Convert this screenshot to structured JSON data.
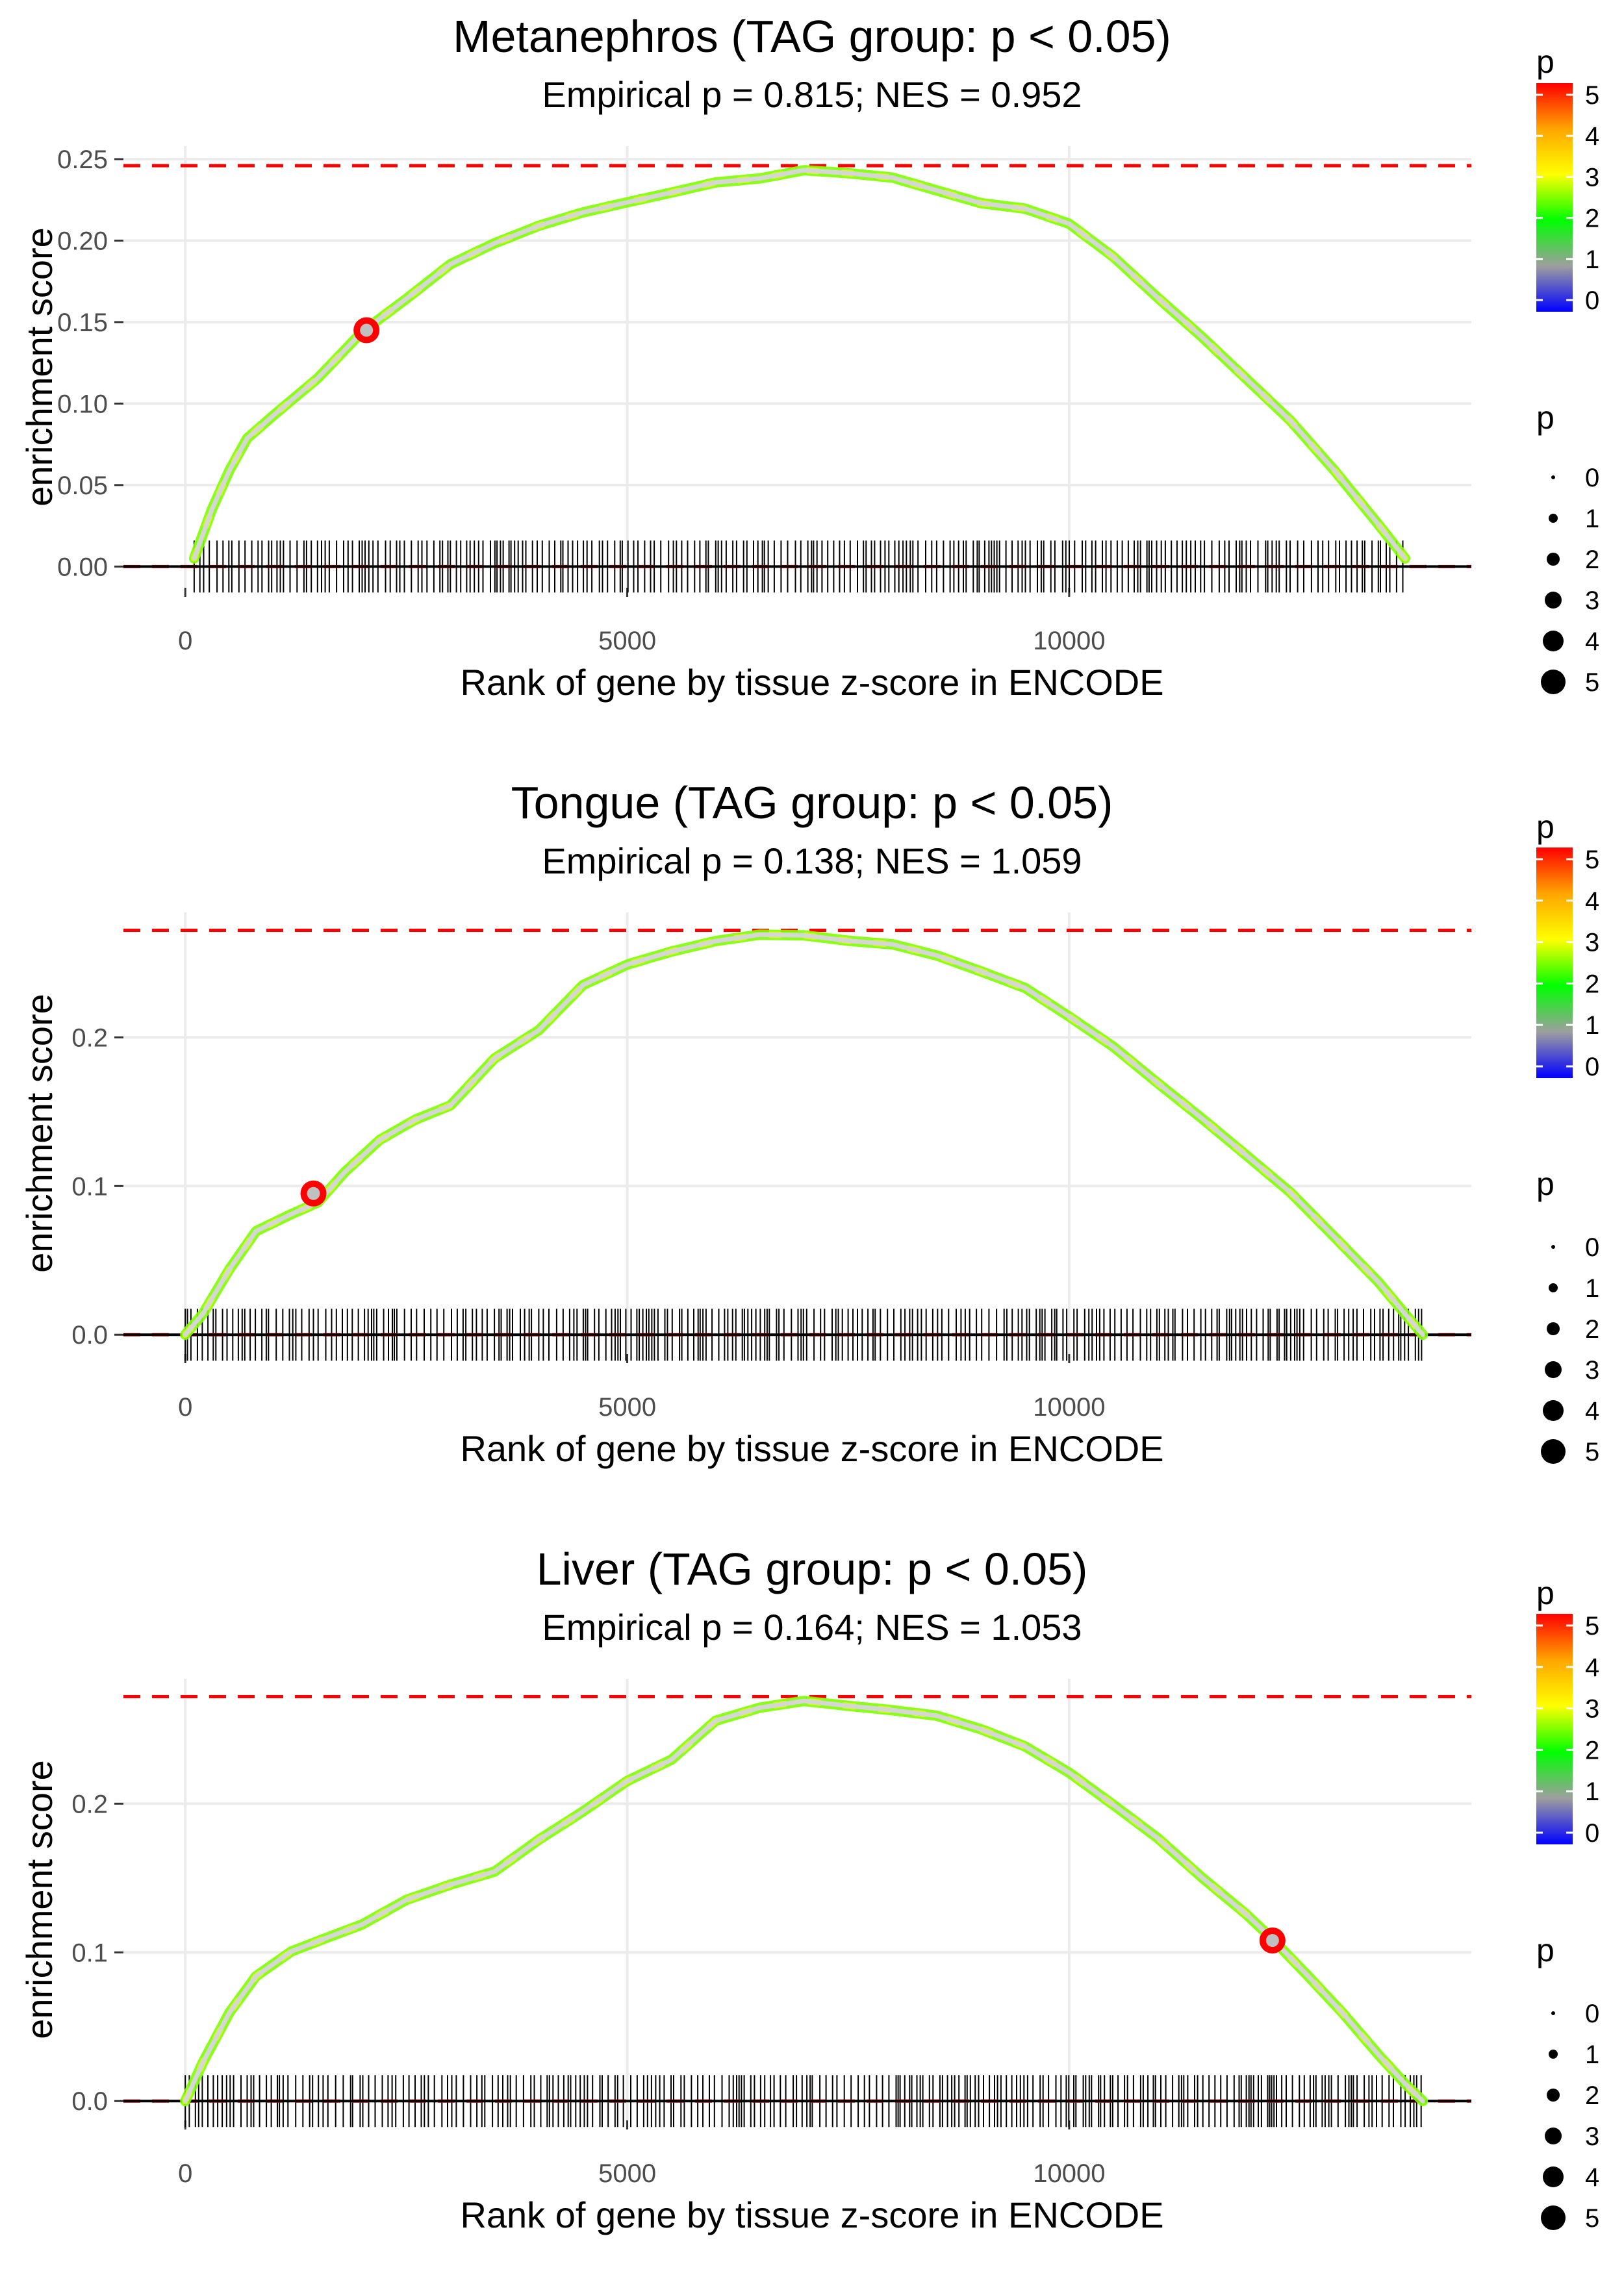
{
  "colors": {
    "null_line": "#ff0000",
    "enrichment_line": "#d6d6d6",
    "gene_marks": "#000000",
    "grid": "#ebebeb",
    "highlight": "#ff0000",
    "scale": [
      "#0000ff",
      "#9e9e9e",
      "#00ff00",
      "#ffff00",
      "#ffa500",
      "#ff0000"
    ]
  },
  "chart_data": [
    {
      "type": "line",
      "title": "Metanephros (TAG group: p < 0.05)",
      "subtitle": "Empirical p = 0.815; NES = 0.952",
      "xlabel": "Rank of gene by tissue z-score in ENCODE",
      "ylabel": "enrichment score",
      "xlim": [
        -700,
        14550
      ],
      "ylim": [
        -0.013,
        0.258
      ],
      "x_ticks": [
        0,
        5000,
        10000
      ],
      "x_tick_labels": [
        "0",
        "5000",
        "10000"
      ],
      "y_ticks": [
        0,
        0.05,
        0.1,
        0.15,
        0.2,
        0.25
      ],
      "y_tick_labels": [
        "0.00",
        "0.05",
        "0.10",
        "0.15",
        "0.20",
        "0.25"
      ],
      "max_es": 0.246,
      "x": [
        100,
        300,
        500,
        700,
        1000,
        1500,
        2000,
        2500,
        3000,
        3500,
        4000,
        4500,
        5000,
        5500,
        6000,
        6500,
        7000,
        7500,
        8000,
        8500,
        9000,
        9500,
        10000,
        10500,
        11000,
        11500,
        12000,
        12500,
        13000,
        13500,
        13800
      ],
      "y": [
        0.005,
        0.035,
        0.06,
        0.078,
        0.092,
        0.115,
        0.145,
        0.165,
        0.185,
        0.198,
        0.21,
        0.218,
        0.224,
        0.23,
        0.235,
        0.239,
        0.244,
        0.242,
        0.238,
        0.23,
        0.222,
        0.219,
        0.21,
        0.19,
        0.165,
        0.14,
        0.115,
        0.09,
        0.06,
        0.025,
        0.005
      ],
      "highlight": {
        "x": 2050,
        "y": 0.145
      },
      "legend_title": "p",
      "legend_color_labels": [
        "5",
        "4",
        "3",
        "2",
        "1",
        "0"
      ],
      "legend_size_labels": [
        "0",
        "1",
        "2",
        "3",
        "4",
        "5"
      ]
    },
    {
      "type": "line",
      "title": "Tongue (TAG group: p < 0.05)",
      "subtitle": "Empirical p = 0.138; NES = 1.059",
      "xlabel": "Rank of gene by tissue z-score in ENCODE",
      "ylabel": "enrichment score",
      "xlim": [
        -700,
        14550
      ],
      "ylim": [
        -0.013,
        0.284
      ],
      "x_ticks": [
        0,
        5000,
        10000
      ],
      "x_tick_labels": [
        "0",
        "5000",
        "10000"
      ],
      "y_ticks": [
        0,
        0.1,
        0.2
      ],
      "y_tick_labels": [
        "0.0",
        "0.1",
        "0.2"
      ],
      "max_es": 0.272,
      "x": [
        0,
        200,
        500,
        800,
        1200,
        1500,
        1800,
        2200,
        2600,
        3000,
        3500,
        4000,
        4500,
        5000,
        5500,
        6000,
        6500,
        7000,
        7500,
        8000,
        8500,
        9000,
        9500,
        10000,
        10500,
        11000,
        11500,
        12000,
        12500,
        13000,
        13500,
        13800,
        14000
      ],
      "y": [
        0.0,
        0.015,
        0.045,
        0.07,
        0.082,
        0.088,
        0.11,
        0.13,
        0.145,
        0.155,
        0.185,
        0.205,
        0.235,
        0.25,
        0.258,
        0.264,
        0.27,
        0.268,
        0.266,
        0.263,
        0.256,
        0.245,
        0.232,
        0.215,
        0.195,
        0.17,
        0.145,
        0.12,
        0.095,
        0.065,
        0.035,
        0.015,
        0.0
      ],
      "highlight": {
        "x": 1450,
        "y": 0.095
      },
      "legend_title": "p",
      "legend_color_labels": [
        "5",
        "4",
        "3",
        "2",
        "1",
        "0"
      ],
      "legend_size_labels": [
        "0",
        "1",
        "2",
        "3",
        "4",
        "5"
      ]
    },
    {
      "type": "line",
      "title": "Liver (TAG group: p < 0.05)",
      "subtitle": "Empirical p = 0.164; NES = 1.053",
      "xlabel": "Rank of gene by tissue z-score in ENCODE",
      "ylabel": "enrichment score",
      "xlim": [
        -700,
        14550
      ],
      "ylim": [
        -0.013,
        0.284
      ],
      "x_ticks": [
        0,
        5000,
        10000
      ],
      "x_tick_labels": [
        "0",
        "5000",
        "10000"
      ],
      "y_ticks": [
        0,
        0.1,
        0.2
      ],
      "y_tick_labels": [
        "0.0",
        "0.1",
        "0.2"
      ],
      "max_es": 0.272,
      "x": [
        0,
        200,
        500,
        800,
        1200,
        1600,
        2000,
        2500,
        3000,
        3500,
        4000,
        4500,
        5000,
        5500,
        6000,
        6500,
        7000,
        7500,
        8000,
        8500,
        9000,
        9500,
        10000,
        10500,
        11000,
        11500,
        12000,
        12300,
        12700,
        13100,
        13500,
        13800,
        14000
      ],
      "y": [
        0.0,
        0.025,
        0.06,
        0.085,
        0.1,
        0.11,
        0.12,
        0.135,
        0.145,
        0.155,
        0.175,
        0.195,
        0.215,
        0.23,
        0.255,
        0.265,
        0.27,
        0.265,
        0.262,
        0.258,
        0.25,
        0.238,
        0.222,
        0.2,
        0.178,
        0.15,
        0.125,
        0.108,
        0.085,
        0.06,
        0.032,
        0.012,
        0.0
      ],
      "highlight": {
        "x": 12300,
        "y": 0.108
      },
      "legend_title": "p",
      "legend_color_labels": [
        "5",
        "4",
        "3",
        "2",
        "1",
        "0"
      ],
      "legend_size_labels": [
        "0",
        "1",
        "2",
        "3",
        "4",
        "5"
      ]
    }
  ]
}
